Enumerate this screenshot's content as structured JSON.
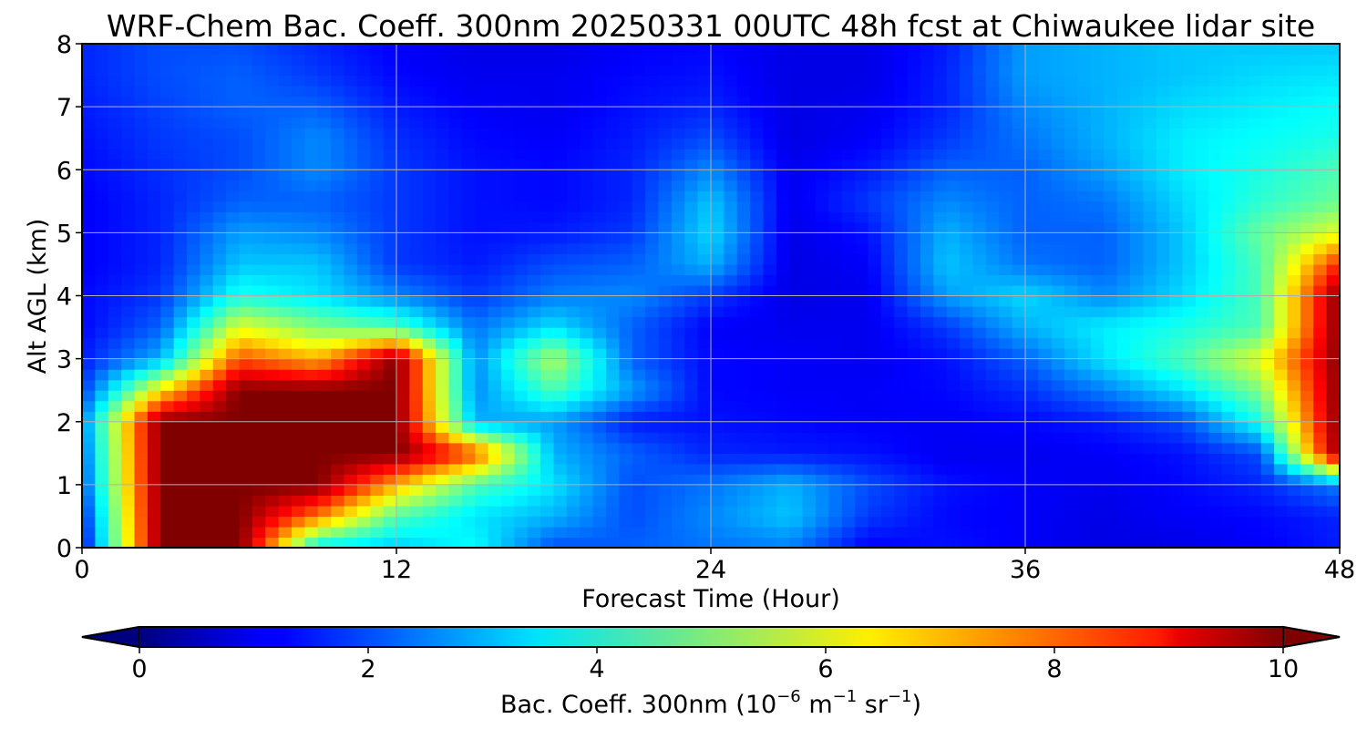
{
  "chart_data": {
    "type": "heatmap",
    "title": "WRF-Chem Bac. Coeff. 300nm  20250331 00UTC 48h fcst at Chiwaukee lidar site",
    "xlabel": "Forecast Time (Hour)",
    "ylabel": "Alt AGL (km)",
    "xlim": [
      0,
      48
    ],
    "ylim": [
      0,
      8
    ],
    "x_ticks": [
      "0",
      "12",
      "24",
      "36",
      "48"
    ],
    "y_ticks": [
      "0",
      "1",
      "2",
      "3",
      "4",
      "5",
      "6",
      "7",
      "8"
    ],
    "grid": true,
    "colorbar": {
      "label_main": "Bac. Coeff. 300nm  (10",
      "exp1": "−6",
      "label_mid": " m",
      "exp2": "−1",
      "label_mid2": " sr",
      "exp3": "−1",
      "label_end": ")",
      "ticks": [
        "0",
        "2",
        "4",
        "6",
        "8",
        "10"
      ],
      "range": [
        0,
        10
      ],
      "colormap": "jet",
      "extend": "both"
    },
    "x": [
      0,
      3,
      6,
      9,
      12,
      15,
      18,
      21,
      24,
      27,
      30,
      33,
      36,
      39,
      42,
      45,
      48
    ],
    "y": [
      0,
      0.5,
      1,
      1.5,
      2,
      2.5,
      3,
      3.5,
      4,
      4.5,
      5,
      5.5,
      6,
      6.5,
      7,
      7.5,
      8
    ],
    "z": [
      [
        1.2,
        10,
        10,
        3.5,
        3.2,
        3.8,
        2.0,
        2.2,
        2.4,
        2.5,
        1.2,
        1.4,
        1.2,
        1.0,
        1.0,
        1.2,
        1.5
      ],
      [
        1.5,
        10,
        10,
        7.5,
        4.5,
        3.5,
        3.0,
        2.0,
        2.6,
        3.2,
        1.8,
        1.3,
        1.2,
        1.0,
        1.2,
        1.3,
        1.6
      ],
      [
        2.0,
        10,
        10,
        10,
        7.0,
        4.5,
        3.5,
        2.0,
        2.4,
        3.0,
        2.0,
        1.4,
        1.2,
        1.1,
        1.3,
        1.6,
        2.5
      ],
      [
        2.2,
        10,
        10,
        10,
        10,
        8.0,
        3.0,
        2.2,
        1.6,
        1.5,
        1.4,
        1.1,
        1.1,
        1.2,
        1.4,
        2.0,
        10
      ],
      [
        2.5,
        10,
        10,
        10,
        10,
        3.0,
        2.8,
        1.5,
        1.4,
        1.3,
        1.2,
        1.2,
        1.3,
        1.5,
        2.0,
        4.0,
        10
      ],
      [
        1.8,
        6.5,
        10,
        10,
        10,
        2.6,
        4.5,
        2.8,
        1.3,
        1.2,
        1.2,
        1.3,
        1.7,
        2.5,
        3.5,
        5.0,
        10
      ],
      [
        1.5,
        3.0,
        8.0,
        7.0,
        10,
        2.6,
        5.5,
        2.2,
        1.3,
        1.2,
        1.1,
        1.4,
        2.2,
        3.5,
        4.5,
        6.0,
        10
      ],
      [
        1.3,
        2.2,
        6.0,
        5.0,
        4.5,
        2.4,
        3.5,
        2.2,
        1.2,
        1.1,
        1.1,
        1.8,
        3.0,
        3.6,
        4.0,
        4.5,
        10
      ],
      [
        1.3,
        1.8,
        4.0,
        3.5,
        2.6,
        1.8,
        2.5,
        2.6,
        1.8,
        1.0,
        1.1,
        2.8,
        3.4,
        2.6,
        3.4,
        4.5,
        10
      ],
      [
        1.2,
        1.6,
        3.2,
        3.2,
        1.8,
        1.5,
        2.0,
        2.2,
        3.0,
        1.0,
        1.2,
        3.2,
        2.4,
        2.2,
        3.2,
        4.5,
        8.5
      ],
      [
        1.2,
        1.6,
        2.8,
        2.6,
        1.8,
        1.4,
        1.5,
        1.8,
        3.4,
        1.0,
        1.4,
        3.0,
        2.2,
        2.2,
        3.2,
        4.8,
        6.0
      ],
      [
        1.2,
        1.6,
        2.2,
        2.2,
        1.8,
        1.4,
        1.3,
        1.6,
        3.2,
        1.1,
        1.8,
        2.6,
        2.2,
        2.4,
        3.4,
        4.2,
        4.8
      ],
      [
        1.3,
        1.7,
        2.0,
        2.6,
        1.8,
        1.4,
        1.3,
        1.6,
        2.6,
        1.1,
        1.5,
        2.2,
        2.2,
        2.8,
        3.6,
        4.0,
        4.5
      ],
      [
        1.4,
        1.8,
        2.0,
        2.6,
        1.7,
        1.3,
        1.2,
        1.5,
        2.0,
        1.0,
        1.2,
        1.8,
        2.4,
        3.0,
        3.6,
        3.8,
        4.0
      ],
      [
        1.5,
        1.9,
        2.2,
        2.2,
        1.5,
        1.2,
        1.1,
        1.4,
        1.6,
        1.0,
        1.1,
        1.6,
        2.6,
        3.0,
        3.4,
        3.6,
        3.8
      ],
      [
        1.6,
        2.0,
        2.2,
        1.8,
        1.3,
        1.1,
        1.1,
        1.3,
        1.4,
        1.0,
        1.0,
        1.6,
        2.8,
        3.0,
        3.2,
        3.4,
        3.5
      ],
      [
        1.6,
        2.0,
        2.0,
        1.6,
        1.2,
        1.0,
        1.0,
        1.2,
        1.3,
        1.0,
        1.0,
        1.5,
        2.8,
        3.0,
        3.2,
        3.2,
        3.2
      ]
    ]
  }
}
